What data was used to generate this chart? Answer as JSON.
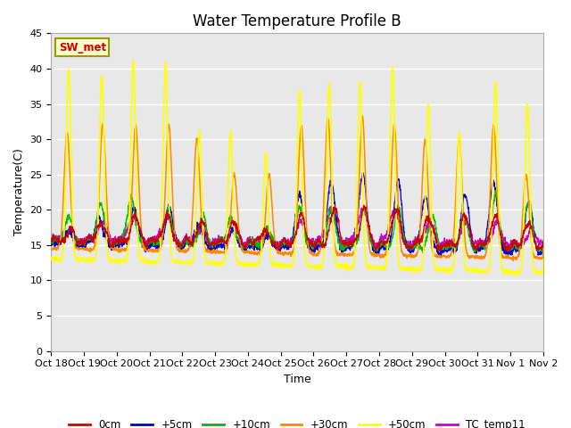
{
  "title": "Water Temperature Profile B",
  "xlabel": "Time",
  "ylabel": "Temperature(C)",
  "ylim": [
    0,
    45
  ],
  "xlim": [
    0,
    15
  ],
  "yticks": [
    0,
    5,
    10,
    15,
    20,
    25,
    30,
    35,
    40,
    45
  ],
  "xtick_labels": [
    "Oct 18",
    "Oct 19",
    "Oct 20",
    "Oct 21",
    "Oct 22",
    "Oct 23",
    "Oct 24",
    "Oct 25",
    "Oct 26",
    "Oct 27",
    "Oct 28",
    "Oct 29",
    "Oct 30",
    "Oct 31",
    "Nov 1",
    "Nov 2"
  ],
  "xtick_positions": [
    0,
    1,
    2,
    3,
    4,
    5,
    6,
    7,
    8,
    9,
    10,
    11,
    12,
    13,
    14,
    15
  ],
  "legend_labels": [
    "0cm",
    "+5cm",
    "+10cm",
    "+30cm",
    "+50cm",
    "TC_temp11"
  ],
  "legend_colors": [
    "#cc0000",
    "#0000cc",
    "#00bb00",
    "#ff8800",
    "#ffff00",
    "#cc00cc"
  ],
  "sw_met_label": "SW_met",
  "sw_met_color": "#cc0000",
  "plot_bg_color": "#e8e8e8",
  "gridline_color": "#ffffff",
  "title_fontsize": 12,
  "axis_fontsize": 9,
  "tick_fontsize": 8
}
